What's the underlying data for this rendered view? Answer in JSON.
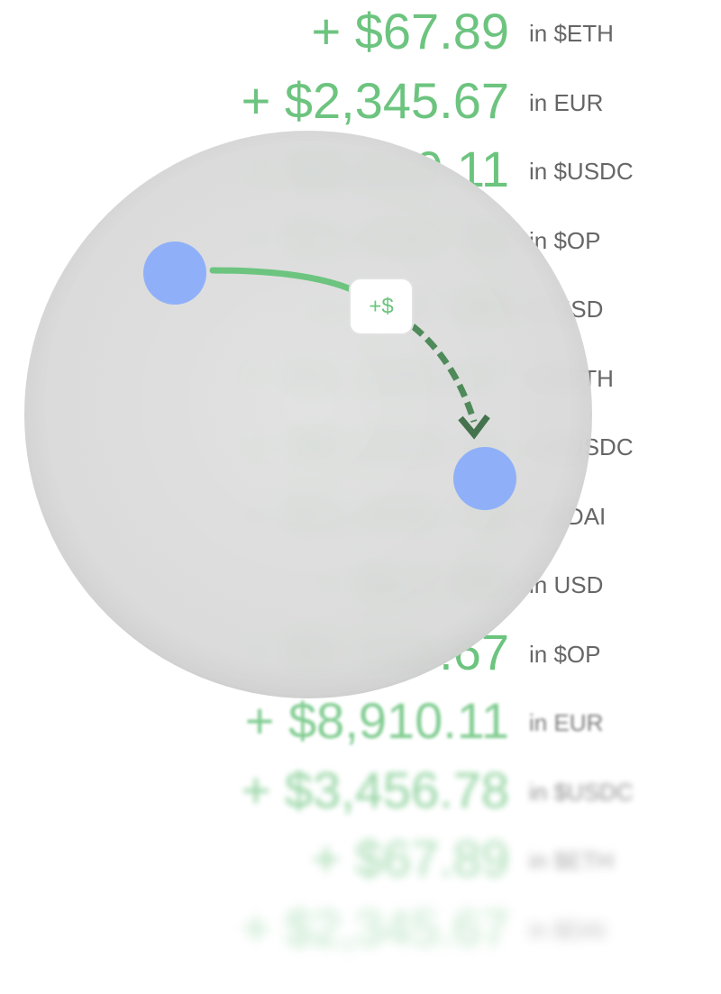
{
  "rows": [
    {
      "amount": "+ $67.89",
      "currency": "in $ETH"
    },
    {
      "amount": "+ $2,345.67",
      "currency": "in EUR"
    },
    {
      "amount": "+ $8,910.11",
      "currency": "in $USDC"
    },
    {
      "amount": "+ $3,456.78",
      "currency": "in $OP"
    },
    {
      "amount": "+ $67.89",
      "currency": "in USD"
    },
    {
      "amount": "+ $2,345.67",
      "currency": "in $ETH"
    },
    {
      "amount": "+ $8,910.11",
      "currency": "in $USDC"
    },
    {
      "amount": "+ $3,456.78",
      "currency": "in $DAI"
    },
    {
      "amount": "+ $67.89",
      "currency": "in USD"
    },
    {
      "amount": "+ $2,345.67",
      "currency": "in $OP"
    },
    {
      "amount": "+ $8,910.11",
      "currency": "in EUR"
    },
    {
      "amount": "+ $3,456.78",
      "currency": "in $USDC"
    },
    {
      "amount": "+ $67.89",
      "currency": "in $ETH"
    },
    {
      "amount": "+ $2,345.67",
      "currency": "in $DAI"
    }
  ],
  "badge": "+$"
}
